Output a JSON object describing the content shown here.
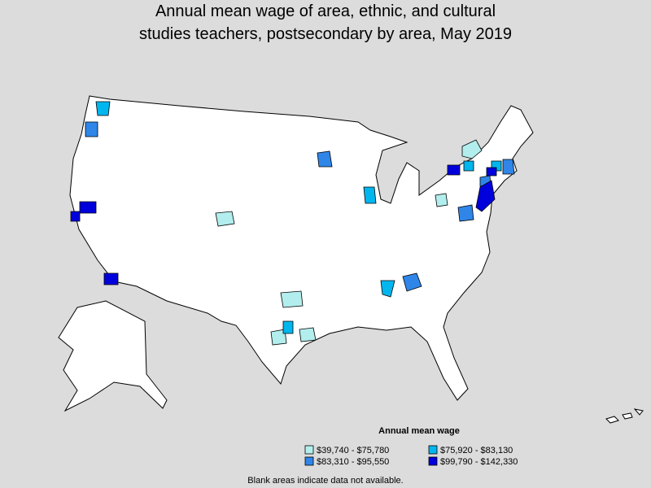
{
  "title": [
    "Annual mean wage of area, ethnic, and cultural",
    "studies teachers, postsecondary by area, May 2019"
  ],
  "legend": {
    "title": "Annual mean wage",
    "items": [
      {
        "label": "$39,740 - $75,780",
        "color": "#b2eeee"
      },
      {
        "label": "$83,310 - $95,550",
        "color": "#2f86e8"
      },
      {
        "label": "$75,920 - $83,130",
        "color": "#00b6ee"
      },
      {
        "label": "$99,790 - $142,330",
        "color": "#0000dd"
      }
    ]
  },
  "note": "Blank areas indicate data not available."
}
